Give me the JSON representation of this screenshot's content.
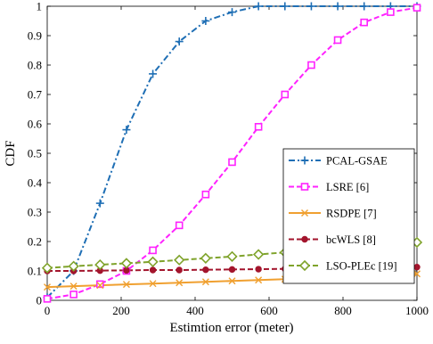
{
  "chart_data": {
    "type": "line",
    "xlabel": "Estimtion error (meter)",
    "ylabel": "CDF",
    "xlim": [
      0,
      1000
    ],
    "ylim": [
      0,
      1
    ],
    "xticks": [
      "0",
      "200",
      "400",
      "600",
      "800",
      "1000"
    ],
    "yticks": [
      "0",
      "0.1",
      "0.2",
      "0.3",
      "0.4",
      "0.5",
      "0.6",
      "0.7",
      "0.8",
      "0.9",
      "1"
    ],
    "grid": false,
    "legend_position": "right",
    "x": [
      0,
      71.4,
      142.9,
      214.3,
      285.7,
      357.1,
      428.6,
      500,
      571.4,
      642.9,
      714.3,
      785.7,
      857.1,
      928.6,
      1000
    ],
    "series": [
      {
        "name": "PCAL-GSAE",
        "color": "#1f6fb5",
        "marker": "plus",
        "dash": "7,3,2,3",
        "values": [
          0.01,
          0.1,
          0.33,
          0.58,
          0.77,
          0.88,
          0.95,
          0.98,
          1.0,
          1.0,
          1.0,
          1.0,
          1.0,
          1.0,
          1.0
        ]
      },
      {
        "name": "LSRE [6]",
        "color": "#ff22ff",
        "marker": "square",
        "dash": "6,3",
        "values": [
          0.005,
          0.02,
          0.055,
          0.1,
          0.17,
          0.255,
          0.36,
          0.47,
          0.59,
          0.7,
          0.8,
          0.885,
          0.945,
          0.98,
          0.995
        ]
      },
      {
        "name": "RSDPE [7]",
        "color": "#f0a030",
        "marker": "x",
        "dash": "",
        "values": [
          0.045,
          0.048,
          0.051,
          0.054,
          0.057,
          0.06,
          0.063,
          0.066,
          0.069,
          0.072,
          0.075,
          0.078,
          0.081,
          0.085,
          0.09
        ]
      },
      {
        "name": "bcWLS [8]",
        "color": "#a3152d",
        "marker": "dot",
        "dash": "6,3",
        "values": [
          0.1,
          0.1,
          0.101,
          0.102,
          0.103,
          0.103,
          0.104,
          0.105,
          0.106,
          0.107,
          0.108,
          0.109,
          0.11,
          0.111,
          0.113
        ]
      },
      {
        "name": "LSO-PLEc [19]",
        "color": "#7fa32b",
        "marker": "diamond",
        "dash": "6,3",
        "values": [
          0.11,
          0.116,
          0.121,
          0.126,
          0.131,
          0.137,
          0.143,
          0.149,
          0.156,
          0.163,
          0.17,
          0.177,
          0.184,
          0.19,
          0.197
        ]
      }
    ]
  }
}
